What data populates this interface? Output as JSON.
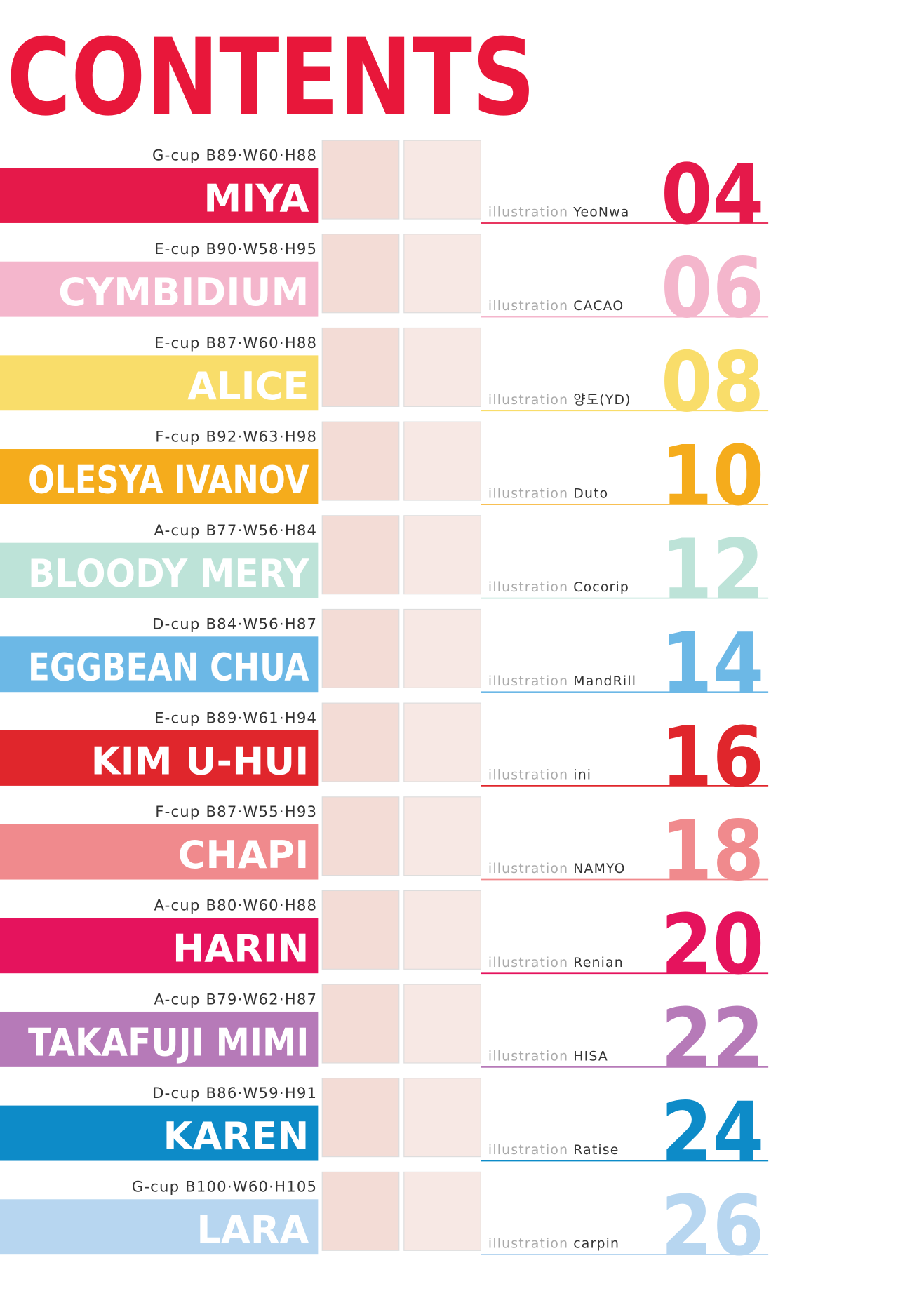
{
  "header": {
    "title": "CONTENTS"
  },
  "entries": [
    {
      "stats": "G-cup B89·W60·H88",
      "name": "MIYA",
      "illustration_label": "illustration",
      "artist": "YeoNwa",
      "page": "04",
      "color": "#e5194a"
    },
    {
      "stats": "E-cup B90·W58·H95",
      "name": "CYMBIDIUM",
      "illustration_label": "illustration",
      "artist": "CACAO",
      "page": "06",
      "color": "#f4b6cc"
    },
    {
      "stats": "E-cup B87·W60·H88",
      "name": "ALICE",
      "illustration_label": "illustration",
      "artist": "양도(YD)",
      "page": "08",
      "color": "#f9dd6a"
    },
    {
      "stats": "F-cup B92·W63·H98",
      "name": "OLESYA IVANOV",
      "illustration_label": "illustration",
      "artist": "Duto",
      "page": "10",
      "color": "#f5ac1c"
    },
    {
      "stats": "A-cup B77·W56·H84",
      "name": "BLOODY MERY",
      "illustration_label": "illustration",
      "artist": "Cocorip",
      "page": "12",
      "color": "#bde3d8"
    },
    {
      "stats": "D-cup B84·W56·H87",
      "name": "EGGBEAN CHUA",
      "illustration_label": "illustration",
      "artist": "MandRill",
      "page": "14",
      "color": "#6cb8e6"
    },
    {
      "stats": "E-cup B89·W61·H94",
      "name": "KIM U-HUI",
      "illustration_label": "illustration",
      "artist": "ini",
      "page": "16",
      "color": "#e0262c"
    },
    {
      "stats": "F-cup B87·W55·H93",
      "name": "CHAPI",
      "illustration_label": "illustration",
      "artist": "NAMYO",
      "page": "18",
      "color": "#f08a8d"
    },
    {
      "stats": "A-cup B80·W60·H88",
      "name": "HARIN",
      "illustration_label": "illustration",
      "artist": "Renian",
      "page": "20",
      "color": "#e5135d"
    },
    {
      "stats": "A-cup B79·W62·H87",
      "name": "TAKAFUJI MIMI",
      "illustration_label": "illustration",
      "artist": "HISA",
      "page": "22",
      "color": "#b67ab8"
    },
    {
      "stats": "D-cup B86·W59·H91",
      "name": "KAREN",
      "illustration_label": "illustration",
      "artist": "Ratise",
      "page": "24",
      "color": "#0d8bc8"
    },
    {
      "stats": "G-cup B100·W60·H105",
      "name": "LARA",
      "illustration_label": "illustration",
      "artist": "carpin",
      "page": "26",
      "color": "#b7d6f0"
    }
  ]
}
